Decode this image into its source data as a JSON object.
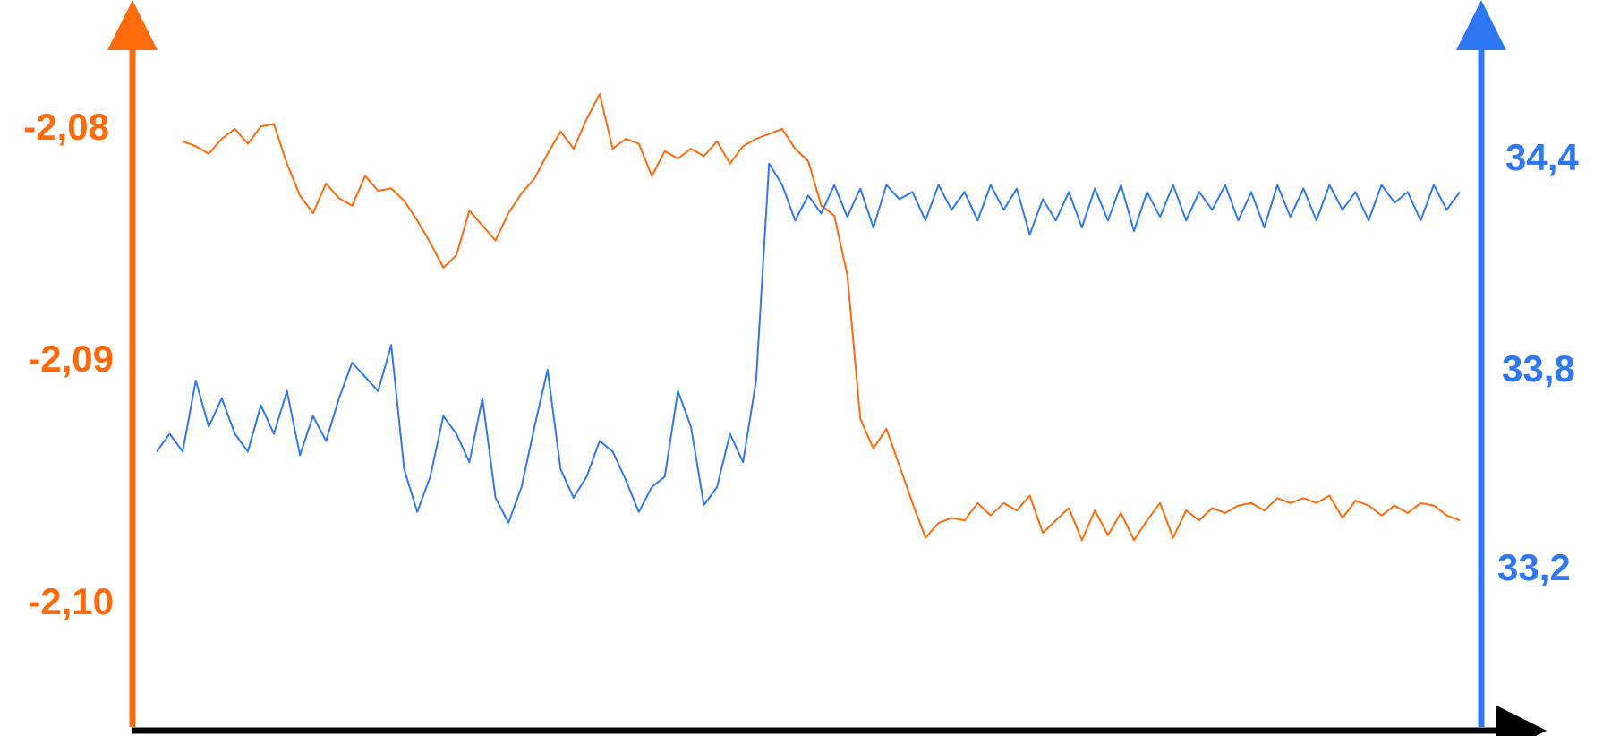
{
  "chart_data": {
    "type": "line",
    "title": "",
    "xlabel": "",
    "grid": false,
    "legend": "none",
    "colors": {
      "left_axis": "#ff6a0a",
      "right_axis": "#2f78f5",
      "x_axis": "#000000"
    },
    "left_axis": {
      "ticks": [
        {
          "label": "-2,08",
          "value": -2.08
        },
        {
          "label": "-2,09",
          "value": -2.09
        },
        {
          "label": "-2,10",
          "value": -2.1
        }
      ],
      "range": [
        -2.1052,
        -2.0755
      ]
    },
    "right_axis": {
      "ticks": [
        {
          "label": "34,4",
          "value": 34.4
        },
        {
          "label": "33,8",
          "value": 33.8
        },
        {
          "label": "33,2",
          "value": 33.2
        }
      ],
      "range": [
        32.85,
        34.92
      ]
    },
    "series": [
      {
        "axis": "left",
        "color": "#ff6a0a",
        "x": [
          2,
          3,
          4,
          5,
          6,
          7,
          8,
          9,
          10,
          11,
          12,
          13,
          14,
          15,
          16,
          17,
          18,
          19,
          20,
          21,
          22,
          23,
          24,
          25,
          26,
          27,
          28,
          29,
          30,
          31,
          32,
          33,
          34,
          35,
          36,
          37,
          38,
          39,
          40,
          41,
          42,
          43,
          44,
          45,
          46,
          47,
          48,
          49,
          50,
          51,
          52,
          53,
          54,
          55,
          56,
          57,
          58,
          59,
          60,
          61,
          62,
          63,
          64,
          65,
          66,
          67,
          68,
          69,
          70,
          71,
          72,
          73,
          74,
          75,
          76,
          77,
          78,
          79,
          80,
          81,
          82,
          83,
          84,
          85,
          86,
          87,
          88,
          89,
          90,
          91,
          92,
          93,
          94,
          95,
          96,
          97,
          98,
          99,
          100
        ],
        "y": [
          -2.0812,
          -2.0814,
          -2.0817,
          -2.0811,
          -2.0807,
          -2.0813,
          -2.0806,
          -2.0805,
          -2.0821,
          -2.0834,
          -2.0841,
          -2.0829,
          -2.0835,
          -2.0838,
          -2.0826,
          -2.0832,
          -2.0831,
          -2.0836,
          -2.0844,
          -2.0853,
          -2.0863,
          -2.0858,
          -2.084,
          -2.0846,
          -2.0852,
          -2.0841,
          -2.0833,
          -2.0827,
          -2.0817,
          -2.0808,
          -2.0815,
          -2.0803,
          -2.0793,
          -2.0815,
          -2.0811,
          -2.0813,
          -2.0826,
          -2.0816,
          -2.0819,
          -2.0815,
          -2.0818,
          -2.0812,
          -2.0821,
          -2.0814,
          -2.0811,
          -2.0809,
          -2.0807,
          -2.0815,
          -2.082,
          -2.0838,
          -2.0842,
          -2.0866,
          -2.0924,
          -2.0936,
          -2.0928,
          -2.0943,
          -2.0958,
          -2.0972,
          -2.0966,
          -2.0964,
          -2.0965,
          -2.0958,
          -2.0963,
          -2.0958,
          -2.0961,
          -2.0955,
          -2.097,
          -2.0965,
          -2.096,
          -2.0973,
          -2.0961,
          -2.0971,
          -2.0962,
          -2.0973,
          -2.0965,
          -2.0958,
          -2.0972,
          -2.0961,
          -2.0965,
          -2.096,
          -2.0962,
          -2.0959,
          -2.0958,
          -2.0961,
          -2.0956,
          -2.0958,
          -2.0956,
          -2.0958,
          -2.0955,
          -2.0964,
          -2.0957,
          -2.0959,
          -2.0963,
          -2.0959,
          -2.0962,
          -2.0958,
          -2.0959,
          -2.0963,
          -2.0965
        ]
      },
      {
        "axis": "right",
        "color": "#2f78f5",
        "x": [
          0,
          1,
          2,
          3,
          4,
          5,
          6,
          7,
          8,
          9,
          10,
          11,
          12,
          13,
          14,
          15,
          16,
          17,
          18,
          19,
          20,
          21,
          22,
          23,
          24,
          25,
          26,
          27,
          28,
          29,
          30,
          31,
          32,
          33,
          34,
          35,
          36,
          37,
          38,
          39,
          40,
          41,
          42,
          43,
          44,
          45,
          46,
          47,
          48,
          49,
          50,
          51,
          52,
          53,
          54,
          55,
          56,
          57,
          58,
          59,
          60,
          61,
          62,
          63,
          64,
          65,
          66,
          67,
          68,
          69,
          70,
          71,
          72,
          73,
          74,
          75,
          76,
          77,
          78,
          79,
          80,
          81,
          82,
          83,
          84,
          85,
          86,
          87,
          88,
          89,
          90,
          91,
          92,
          93,
          94,
          95,
          96,
          97,
          98,
          99,
          100
        ],
        "y": [
          33.65,
          33.7,
          33.65,
          33.85,
          33.72,
          33.8,
          33.7,
          33.65,
          33.78,
          33.7,
          33.82,
          33.64,
          33.75,
          33.68,
          33.8,
          33.9,
          33.86,
          33.82,
          33.95,
          33.6,
          33.48,
          33.58,
          33.75,
          33.7,
          33.62,
          33.8,
          33.52,
          33.45,
          33.55,
          33.72,
          33.88,
          33.6,
          33.52,
          33.58,
          33.68,
          33.65,
          33.57,
          33.48,
          33.55,
          33.58,
          33.82,
          33.72,
          33.5,
          33.55,
          33.7,
          33.62,
          33.85,
          34.46,
          34.4,
          34.3,
          34.37,
          34.32,
          34.4,
          34.31,
          34.39,
          34.28,
          34.4,
          34.36,
          34.38,
          34.3,
          34.4,
          34.33,
          34.38,
          34.3,
          34.4,
          34.33,
          34.39,
          34.26,
          34.36,
          34.3,
          34.38,
          34.28,
          34.39,
          34.3,
          34.4,
          34.27,
          34.38,
          34.31,
          34.4,
          34.3,
          34.38,
          34.33,
          34.4,
          34.3,
          34.38,
          34.28,
          34.4,
          34.31,
          34.39,
          34.3,
          34.4,
          34.33,
          34.38,
          34.3,
          34.4,
          34.35,
          34.38,
          34.3,
          34.4,
          34.33,
          34.38
        ]
      }
    ]
  }
}
